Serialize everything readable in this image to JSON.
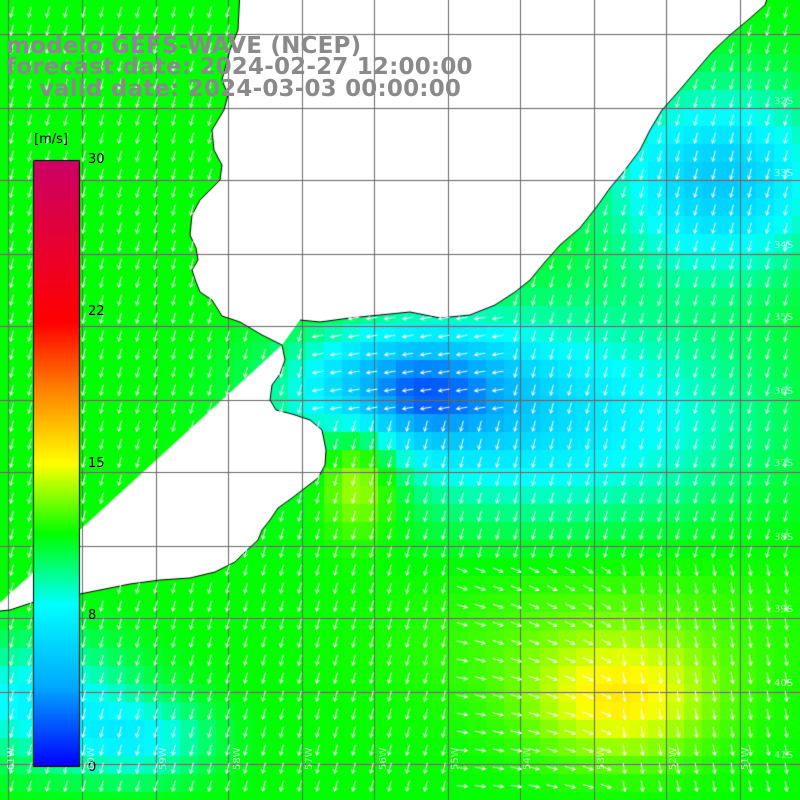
{
  "title": {
    "line1": "modelo GEFS-WAVE (NCEP)",
    "line2": "forecast date: 2024-02-27 12:00:00",
    "line3": "    valid date: 2024-03-03 00:00:00"
  },
  "colorbar": {
    "unit": "[m/s]",
    "ticks": [
      "30",
      "22",
      "15",
      "8",
      "0"
    ],
    "colors": [
      "#0000ff",
      "#00aaff",
      "#00ffff",
      "#00ff00",
      "#ffff00",
      "#ff8800",
      "#ff0000",
      "#cc0066"
    ]
  },
  "map": {
    "lat_labels": [
      "32S",
      "33S",
      "34S",
      "35S",
      "36S",
      "37S",
      "38S",
      "39S",
      "40S",
      "41S"
    ],
    "lon_labels": [
      "61W",
      "60W",
      "59W",
      "58W",
      "57W",
      "56W",
      "55W",
      "54W",
      "53W",
      "52W",
      "51W"
    ],
    "land_color": "#ffffff",
    "grid_color": "#666666",
    "coast_color": "#000000",
    "arrow_color": "#ffffff",
    "wind_direction_note": "predominantly from the northeast/north over most of domain"
  }
}
